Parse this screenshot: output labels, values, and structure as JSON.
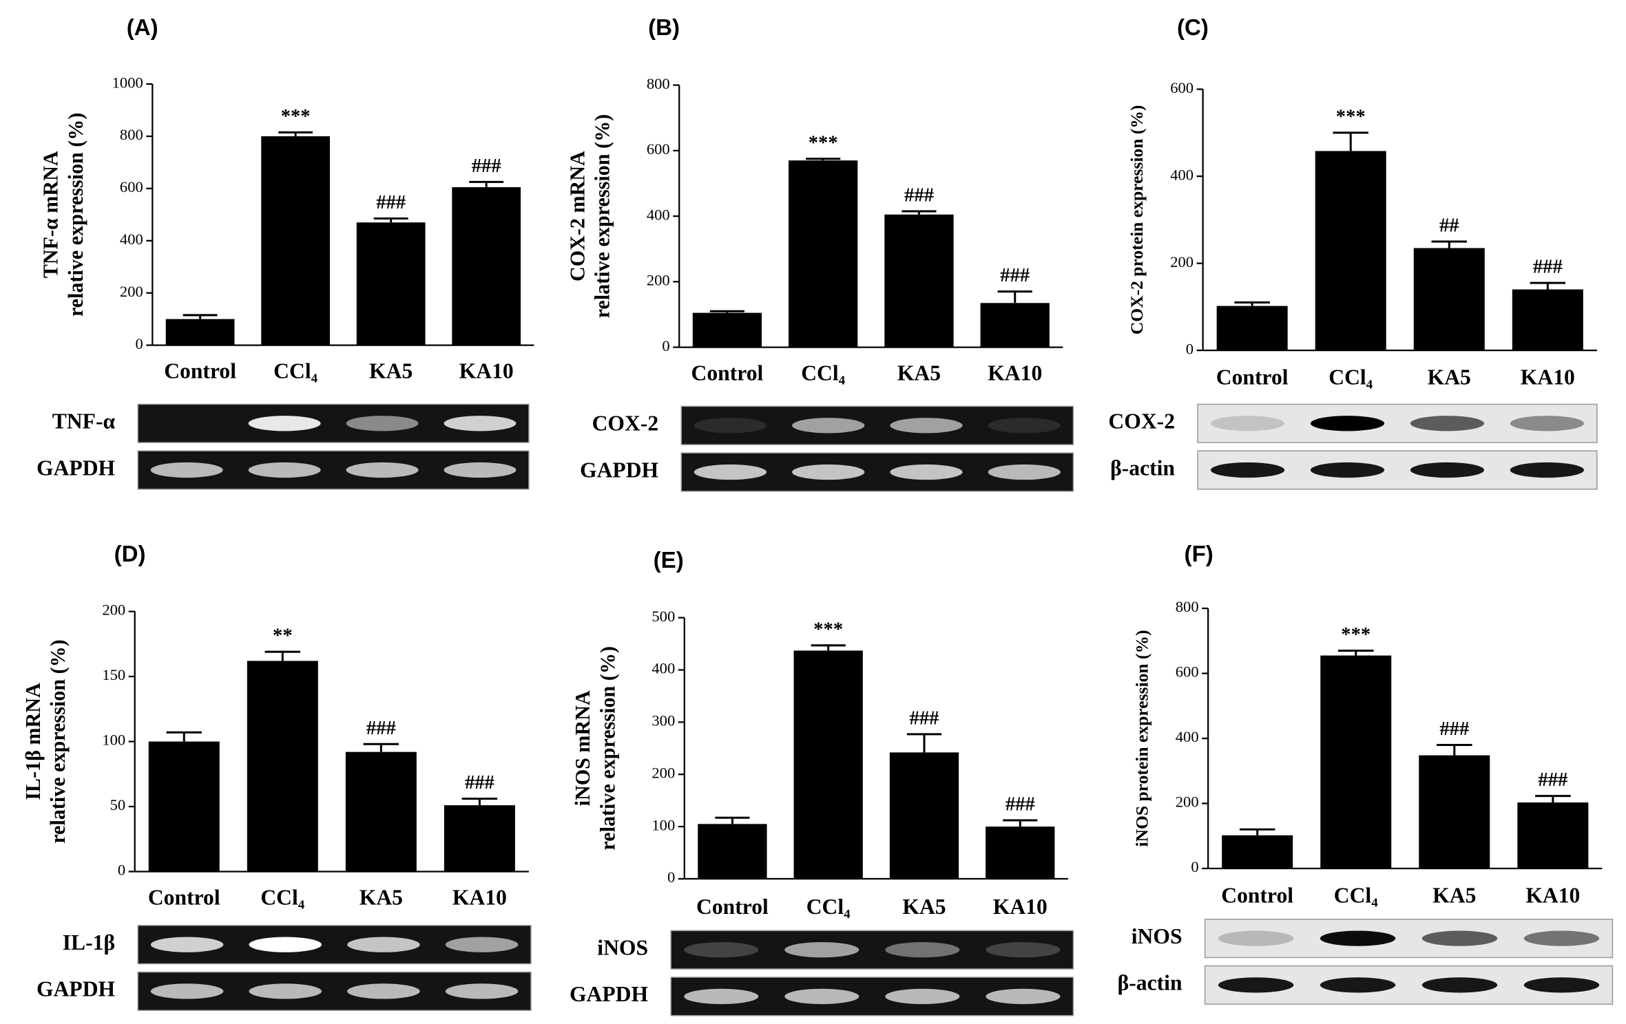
{
  "chart_data": [
    {
      "type": "bar",
      "panel": "(A)",
      "ylabel": [
        "TNF-α mRNA",
        "relative expression (%)"
      ],
      "categories": [
        "Control",
        "CCl₄",
        "KA5",
        "KA10"
      ],
      "values": [
        100,
        800,
        470,
        605
      ],
      "errors": [
        15,
        15,
        15,
        20
      ],
      "annotations": [
        null,
        "***",
        "###",
        "###"
      ],
      "color": "#000000",
      "ylim": [
        0,
        1000
      ],
      "yticks": [
        0,
        200,
        400,
        600,
        800,
        1000
      ],
      "blot_labels": [
        "TNF-α",
        "GAPDH"
      ]
    },
    {
      "type": "bar",
      "panel": "(B)",
      "ylabel": [
        "COX-2 mRNA",
        "relative expression (%)"
      ],
      "categories": [
        "Control",
        "CCl₄",
        "KA5",
        "KA10"
      ],
      "values": [
        105,
        570,
        405,
        135
      ],
      "errors": [
        5,
        5,
        10,
        35
      ],
      "annotations": [
        null,
        "***",
        "###",
        "###"
      ],
      "color": "#000000",
      "ylim": [
        0,
        800
      ],
      "yticks": [
        0,
        200,
        400,
        600,
        800
      ],
      "blot_labels": [
        "COX-2",
        "GAPDH"
      ]
    },
    {
      "type": "bar",
      "panel": "(C)",
      "ylabel": [
        "COX-2 protein expression (%)"
      ],
      "categories": [
        "Control",
        "CCl₄",
        "KA5",
        "KA10"
      ],
      "values": [
        102,
        458,
        235,
        140
      ],
      "errors": [
        8,
        42,
        15,
        15
      ],
      "annotations": [
        null,
        "***",
        "##",
        "###"
      ],
      "color": "#000000",
      "ylim": [
        0,
        600
      ],
      "yticks": [
        0,
        200,
        400,
        600
      ],
      "blot_labels": [
        "COX-2",
        "β-actin"
      ]
    },
    {
      "type": "bar",
      "panel": "(D)",
      "ylabel": [
        "IL-1β mRNA",
        "relative expression (%)"
      ],
      "categories": [
        "Control",
        "CCl₄",
        "KA5",
        "KA10"
      ],
      "values": [
        100,
        162,
        92,
        51
      ],
      "errors": [
        7,
        7,
        6,
        5
      ],
      "annotations": [
        null,
        "**",
        "###",
        "###"
      ],
      "color": "#000000",
      "ylim": [
        0,
        200
      ],
      "yticks": [
        0,
        50,
        100,
        150,
        200
      ],
      "blot_labels": [
        "IL-1β",
        "GAPDH"
      ]
    },
    {
      "type": "bar",
      "panel": "(E)",
      "ylabel": [
        "iNOS mRNA",
        "relative expression (%)"
      ],
      "categories": [
        "Control",
        "CCl₄",
        "KA5",
        "KA10"
      ],
      "values": [
        105,
        437,
        242,
        100
      ],
      "errors": [
        12,
        10,
        35,
        12
      ],
      "annotations": [
        null,
        "***",
        "###",
        "###"
      ],
      "color": "#000000",
      "ylim": [
        0,
        500
      ],
      "yticks": [
        0,
        100,
        200,
        300,
        400,
        500
      ],
      "blot_labels": [
        "iNOS",
        "GAPDH"
      ]
    },
    {
      "type": "bar",
      "panel": "(F)",
      "ylabel": [
        "iNOS protein expression (%)"
      ],
      "categories": [
        "Control",
        "CCl₄",
        "KA5",
        "KA10"
      ],
      "values": [
        102,
        655,
        348,
        203
      ],
      "errors": [
        18,
        15,
        32,
        20
      ],
      "annotations": [
        null,
        "***",
        "###",
        "###"
      ],
      "color": "#000000",
      "ylim": [
        0,
        800
      ],
      "yticks": [
        0,
        200,
        400,
        600,
        800
      ],
      "blot_labels": [
        "iNOS",
        "β-actin"
      ]
    }
  ]
}
